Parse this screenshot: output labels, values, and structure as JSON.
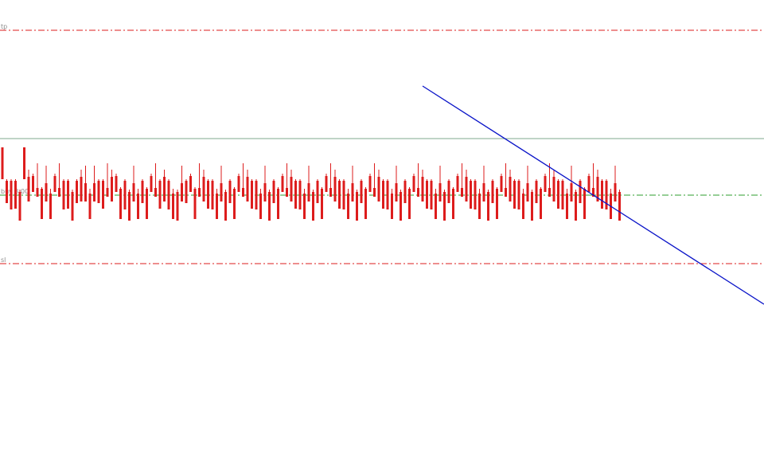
{
  "chart_data": {
    "type": "candlestick",
    "title": "",
    "xlabel": "",
    "ylabel": "",
    "grid": false,
    "ylim": [
      0,
      565
    ],
    "colors": {
      "bull": "#3fbf3f",
      "bear": "#dd1c1c",
      "level_line": "#dd1c1c",
      "buy_line": "#2e9e2e",
      "horizontal_line": "#7fa88c",
      "trendline": "#0a14c8"
    },
    "levels": [
      {
        "label": "tp",
        "value": 527
      },
      {
        "label": "buy 3.00",
        "value": 320
      },
      {
        "label": "sl",
        "value": 234
      }
    ],
    "horizontal_lines": [
      {
        "value": 391
      }
    ],
    "trendline": {
      "x": [
        0,
        147
      ],
      "y": [
        457,
        183
      ],
      "anchor_x": 44
    },
    "ohlc": [
      [
        380,
        379,
        352,
        340
      ],
      [
        338,
        340,
        313,
        310
      ],
      [
        338,
        340,
        303,
        302
      ],
      [
        338,
        340,
        306,
        303
      ],
      [
        324,
        327,
        290,
        288
      ],
      [
        380,
        379,
        352,
        340
      ],
      [
        343,
        352,
        315,
        312
      ],
      [
        344,
        347,
        326,
        324
      ],
      [
        329,
        360,
        320,
        318
      ],
      [
        328,
        330,
        300,
        290
      ],
      [
        335,
        357,
        315,
        312
      ],
      [
        322,
        328,
        293,
        290
      ],
      [
        344,
        347,
        326,
        324
      ],
      [
        329,
        360,
        320,
        318
      ],
      [
        338,
        340,
        303,
        302
      ],
      [
        338,
        340,
        306,
        303
      ],
      [
        324,
        327,
        290,
        288
      ],
      [
        338,
        340,
        313,
        310
      ],
      [
        343,
        352,
        315,
        312
      ],
      [
        335,
        357,
        315,
        312
      ],
      [
        322,
        328,
        293,
        290
      ],
      [
        335,
        357,
        315,
        312
      ],
      [
        338,
        340,
        313,
        310
      ],
      [
        338,
        340,
        306,
        303
      ],
      [
        329,
        360,
        320,
        318
      ],
      [
        343,
        352,
        315,
        312
      ],
      [
        344,
        347,
        326,
        324
      ],
      [
        328,
        330,
        300,
        290
      ],
      [
        338,
        340,
        303,
        302
      ],
      [
        324,
        327,
        290,
        288
      ],
      [
        335,
        357,
        315,
        312
      ],
      [
        322,
        328,
        293,
        290
      ],
      [
        338,
        340,
        313,
        310
      ],
      [
        328,
        330,
        300,
        290
      ],
      [
        344,
        347,
        326,
        324
      ],
      [
        329,
        360,
        320,
        318
      ],
      [
        338,
        340,
        306,
        303
      ],
      [
        343,
        352,
        315,
        312
      ],
      [
        338,
        340,
        303,
        302
      ],
      [
        322,
        328,
        293,
        290
      ],
      [
        324,
        327,
        290,
        288
      ],
      [
        335,
        357,
        315,
        312
      ],
      [
        338,
        340,
        313,
        310
      ],
      [
        344,
        347,
        326,
        324
      ],
      [
        328,
        330,
        300,
        290
      ],
      [
        329,
        360,
        320,
        318
      ],
      [
        343,
        352,
        315,
        312
      ],
      [
        338,
        340,
        306,
        303
      ],
      [
        338,
        340,
        303,
        302
      ],
      [
        322,
        328,
        293,
        290
      ],
      [
        335,
        357,
        315,
        312
      ],
      [
        324,
        327,
        290,
        288
      ],
      [
        338,
        340,
        313,
        310
      ],
      [
        328,
        330,
        300,
        290
      ],
      [
        344,
        347,
        326,
        324
      ],
      [
        329,
        360,
        320,
        318
      ],
      [
        343,
        352,
        315,
        312
      ],
      [
        338,
        340,
        306,
        303
      ],
      [
        338,
        340,
        303,
        302
      ],
      [
        322,
        328,
        293,
        290
      ],
      [
        335,
        357,
        315,
        312
      ],
      [
        324,
        327,
        290,
        288
      ],
      [
        338,
        340,
        313,
        310
      ],
      [
        328,
        330,
        300,
        290
      ],
      [
        344,
        347,
        326,
        324
      ],
      [
        329,
        360,
        320,
        318
      ],
      [
        343,
        352,
        315,
        312
      ],
      [
        338,
        340,
        306,
        303
      ],
      [
        338,
        340,
        303,
        302
      ],
      [
        322,
        328,
        293,
        290
      ],
      [
        335,
        357,
        315,
        312
      ],
      [
        324,
        327,
        290,
        288
      ],
      [
        338,
        340,
        313,
        310
      ],
      [
        328,
        330,
        300,
        290
      ],
      [
        344,
        347,
        326,
        324
      ],
      [
        329,
        360,
        320,
        318
      ],
      [
        343,
        352,
        315,
        312
      ],
      [
        338,
        340,
        306,
        303
      ],
      [
        338,
        340,
        303,
        302
      ],
      [
        322,
        328,
        293,
        290
      ],
      [
        335,
        357,
        315,
        312
      ],
      [
        324,
        327,
        290,
        288
      ],
      [
        338,
        340,
        313,
        310
      ],
      [
        328,
        330,
        300,
        290
      ],
      [
        344,
        347,
        326,
        324
      ],
      [
        329,
        360,
        320,
        318
      ],
      [
        343,
        352,
        315,
        312
      ],
      [
        338,
        340,
        306,
        303
      ],
      [
        338,
        340,
        303,
        302
      ],
      [
        322,
        328,
        293,
        290
      ],
      [
        335,
        357,
        315,
        312
      ],
      [
        324,
        327,
        290,
        288
      ],
      [
        338,
        340,
        313,
        310
      ],
      [
        328,
        330,
        300,
        290
      ],
      [
        344,
        347,
        326,
        324
      ],
      [
        329,
        360,
        320,
        318
      ],
      [
        343,
        352,
        315,
        312
      ],
      [
        338,
        340,
        306,
        303
      ],
      [
        338,
        340,
        303,
        302
      ],
      [
        322,
        328,
        293,
        290
      ],
      [
        335,
        357,
        315,
        312
      ],
      [
        324,
        327,
        290,
        288
      ],
      [
        338,
        340,
        313,
        310
      ],
      [
        328,
        330,
        300,
        290
      ],
      [
        344,
        347,
        326,
        324
      ],
      [
        329,
        360,
        320,
        318
      ],
      [
        343,
        352,
        315,
        312
      ],
      [
        338,
        340,
        306,
        303
      ],
      [
        338,
        340,
        303,
        302
      ],
      [
        322,
        328,
        293,
        290
      ],
      [
        335,
        357,
        315,
        312
      ],
      [
        324,
        327,
        290,
        288
      ],
      [
        338,
        340,
        313,
        310
      ],
      [
        328,
        330,
        300,
        290
      ],
      [
        344,
        347,
        326,
        324
      ],
      [
        329,
        360,
        320,
        318
      ],
      [
        343,
        352,
        315,
        312
      ],
      [
        338,
        340,
        306,
        303
      ],
      [
        338,
        340,
        303,
        302
      ],
      [
        322,
        328,
        293,
        290
      ],
      [
        335,
        357,
        315,
        312
      ],
      [
        324,
        327,
        290,
        288
      ],
      [
        338,
        340,
        313,
        310
      ],
      [
        328,
        330,
        300,
        290
      ],
      [
        344,
        347,
        326,
        324
      ],
      [
        329,
        360,
        320,
        318
      ],
      [
        343,
        352,
        315,
        312
      ],
      [
        338,
        340,
        306,
        303
      ],
      [
        338,
        340,
        303,
        302
      ],
      [
        322,
        328,
        293,
        290
      ],
      [
        335,
        357,
        315,
        312
      ],
      [
        324,
        327,
        290,
        288
      ],
      [
        338,
        340,
        313,
        310
      ],
      [
        328,
        330,
        300,
        290
      ],
      [
        344,
        347,
        326,
        324
      ],
      [
        329,
        360,
        320,
        318
      ],
      [
        343,
        352,
        315,
        312
      ],
      [
        338,
        340,
        306,
        303
      ],
      [
        338,
        340,
        303,
        302
      ],
      [
        322,
        328,
        293,
        290
      ],
      [
        335,
        357,
        315,
        312
      ],
      [
        324,
        327,
        290,
        288
      ]
    ]
  }
}
